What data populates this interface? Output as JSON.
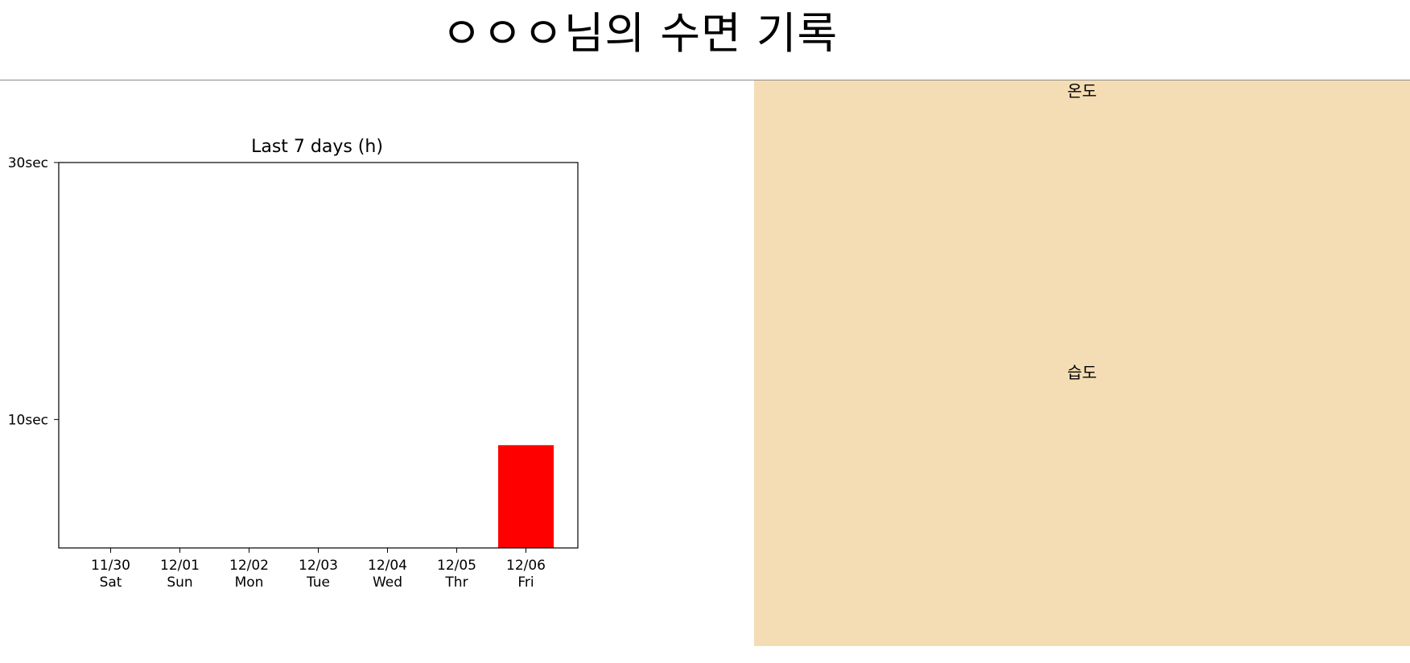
{
  "header": {
    "title": "ㅇㅇㅇ님의 수면 기록"
  },
  "sensors": {
    "temperature_label": "온도",
    "humidity_label": "습도"
  },
  "colors": {
    "bar": "#ff0000",
    "sensor_panel_bg": "#f4ddb4"
  },
  "chart_data": {
    "type": "bar",
    "title": "Last 7 days (h)",
    "xlabel": "",
    "ylabel": "",
    "categories": [
      {
        "date": "11/30",
        "day": "Sat"
      },
      {
        "date": "12/01",
        "day": "Sun"
      },
      {
        "date": "12/02",
        "day": "Mon"
      },
      {
        "date": "12/03",
        "day": "Tue"
      },
      {
        "date": "12/04",
        "day": "Wed"
      },
      {
        "date": "12/05",
        "day": "Thr"
      },
      {
        "date": "12/06",
        "day": "Fri"
      }
    ],
    "values": [
      0,
      0,
      0,
      0,
      0,
      0,
      8
    ],
    "ylim": [
      0,
      30
    ],
    "yticks": [
      {
        "value": 10,
        "label": "10sec"
      },
      {
        "value": 30,
        "label": "30sec"
      }
    ],
    "grid": false,
    "legend": "none"
  }
}
